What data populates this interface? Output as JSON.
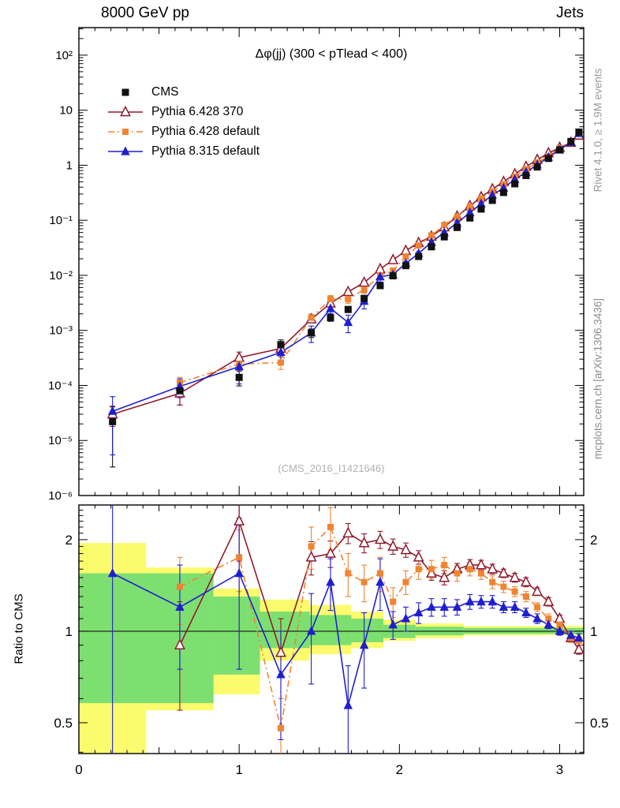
{
  "header": {
    "left": "8000 GeV pp",
    "right": "Jets"
  },
  "captions": {
    "rivet": "Rivet 4.1.0, ≥ 1.9M events",
    "mcplots": "mcplots.cern.ch [arXiv:1306.3436]",
    "watermark": "(CMS_2016_I1421646)",
    "ratio_ylabel": "Ratio to CMS"
  },
  "chart_data": {
    "type": "line",
    "title": "Δφ(jj) (300 < pTlead <  400)",
    "xlabel": "",
    "ylabel": "",
    "xlim": [
      0,
      3.15
    ],
    "x_ticks": [
      0,
      1,
      2,
      3
    ],
    "main_ylim_log": [
      -6,
      2.5
    ],
    "main_y_tick_exp": [
      2,
      1,
      0,
      -1,
      -2,
      -3,
      -4,
      -5,
      -6
    ],
    "main_y_tick_labels": [
      "10²",
      "10",
      "1",
      "10⁻¹",
      "10⁻²",
      "10⁻³",
      "10⁻⁴",
      "10⁻⁵",
      "10⁻⁶"
    ],
    "ratio_ylim": [
      0.396,
      2.6
    ],
    "ratio_ticks": [
      0.5,
      1,
      2
    ],
    "ratio_tick_labels": [
      "0.5",
      "1",
      "2"
    ],
    "ratio_minor_ticks": [
      0.4,
      0.6,
      0.7,
      0.8,
      0.9,
      1.1,
      1.2,
      1.3,
      1.4,
      1.5,
      1.6,
      1.7,
      1.8,
      1.9,
      2.1,
      2.2,
      2.3,
      2.4,
      2.5
    ],
    "x": [
      0.21,
      0.63,
      1.0,
      1.26,
      1.45,
      1.57,
      1.68,
      1.78,
      1.88,
      1.96,
      2.04,
      2.12,
      2.2,
      2.28,
      2.36,
      2.44,
      2.51,
      2.58,
      2.65,
      2.72,
      2.79,
      2.86,
      2.93,
      3.0,
      3.07,
      3.12
    ],
    "series": [
      {
        "name": "CMS",
        "color": "#111111",
        "marker": "square-filled",
        "msize": 9,
        "line": "none",
        "y": [
          2.2e-05,
          8e-05,
          0.00014,
          0.00055,
          0.0009,
          0.0017,
          0.0024,
          0.0038,
          0.0065,
          0.0098,
          0.015,
          0.022,
          0.033,
          0.05,
          0.074,
          0.11,
          0.16,
          0.23,
          0.32,
          0.46,
          0.65,
          0.93,
          1.33,
          1.9,
          2.7,
          4.0
        ],
        "rel_err": [
          0.85,
          0.45,
          0.3,
          0.22,
          0.18,
          0.14,
          0.12,
          0.11,
          0.1,
          0.08,
          0.07,
          0.06,
          0.06,
          0.05,
          0.05,
          0.04,
          0.04,
          0.04,
          0.03,
          0.03,
          0.03,
          0.03,
          0.02,
          0.02,
          0.02,
          0.02
        ]
      },
      {
        "name": "Pythia 6.428 370",
        "color": "#8f1b2e",
        "marker": "triangle-open",
        "msize": 11,
        "line": "solid",
        "y": [
          3e-05,
          7.2e-05,
          0.00032,
          0.00047,
          0.0016,
          0.0031,
          0.005,
          0.0074,
          0.013,
          0.019,
          0.028,
          0.039,
          0.051,
          0.075,
          0.118,
          0.182,
          0.264,
          0.368,
          0.5,
          0.69,
          0.94,
          1.26,
          1.66,
          2.09,
          2.57,
          3.48
        ],
        "ratio": [
          null,
          0.9,
          2.3,
          0.85,
          1.75,
          1.8,
          2.1,
          1.95,
          2.0,
          1.9,
          1.85,
          1.75,
          1.55,
          1.5,
          1.6,
          1.65,
          1.65,
          1.6,
          1.55,
          1.5,
          1.45,
          1.35,
          1.25,
          1.1,
          0.95,
          0.87
        ],
        "ratio_err": [
          null,
          0.35,
          0.6,
          0.25,
          0.22,
          0.18,
          0.16,
          0.14,
          0.13,
          0.11,
          0.1,
          0.09,
          0.08,
          0.08,
          0.07,
          0.07,
          0.06,
          0.06,
          0.05,
          0.05,
          0.05,
          0.04,
          0.04,
          0.03,
          0.03,
          0.03
        ]
      },
      {
        "name": "Pythia 6.428 default",
        "color": "#ef8433",
        "marker": "square-filled",
        "msize": 8,
        "line": "dashdot",
        "y": [
          null,
          0.000112,
          0.000245,
          0.00026,
          0.0017,
          0.0037,
          0.0037,
          0.0055,
          0.01,
          0.0122,
          0.022,
          0.035,
          0.053,
          0.082,
          0.115,
          0.176,
          0.248,
          0.334,
          0.448,
          0.621,
          0.845,
          1.12,
          1.46,
          2.0,
          2.57,
          3.72
        ],
        "ratio": [
          null,
          1.4,
          1.75,
          0.48,
          1.9,
          2.2,
          1.55,
          1.45,
          1.55,
          1.25,
          1.45,
          1.6,
          1.6,
          1.65,
          1.55,
          1.6,
          1.55,
          1.45,
          1.4,
          1.35,
          1.3,
          1.2,
          1.1,
          1.05,
          0.95,
          0.93
        ],
        "ratio_err": [
          null,
          0.35,
          0.4,
          0.12,
          0.3,
          0.35,
          0.25,
          0.2,
          0.2,
          0.14,
          0.13,
          0.12,
          0.11,
          0.1,
          0.09,
          0.08,
          0.07,
          0.07,
          0.06,
          0.05,
          0.05,
          0.04,
          0.04,
          0.03,
          0.03,
          0.03
        ]
      },
      {
        "name": "Pythia 8.315 default",
        "color": "#1f1fd0",
        "marker": "triangle-filled",
        "msize": 11,
        "line": "solid",
        "y": [
          3.4e-05,
          9.6e-05,
          0.00022,
          0.0004,
          0.0009,
          0.0025,
          0.0014,
          0.0034,
          0.0094,
          0.0103,
          0.0165,
          0.025,
          0.04,
          0.06,
          0.089,
          0.138,
          0.2,
          0.288,
          0.384,
          0.552,
          0.748,
          1.02,
          1.4,
          1.9,
          2.62,
          3.8
        ],
        "ratio": [
          1.55,
          1.2,
          1.55,
          0.72,
          1.0,
          1.45,
          0.57,
          0.9,
          1.45,
          1.05,
          1.1,
          1.15,
          1.2,
          1.2,
          1.2,
          1.25,
          1.25,
          1.25,
          1.2,
          1.2,
          1.15,
          1.1,
          1.05,
          1.0,
          0.97,
          0.95
        ],
        "ratio_err": [
          1.3,
          0.45,
          0.8,
          0.28,
          0.33,
          0.28,
          0.2,
          0.25,
          0.28,
          0.11,
          0.1,
          0.09,
          0.08,
          0.08,
          0.07,
          0.07,
          0.06,
          0.06,
          0.05,
          0.05,
          0.04,
          0.04,
          0.03,
          0.03,
          0.03,
          0.03
        ]
      }
    ],
    "bands": {
      "yellow": {
        "color": "#fbfb6d",
        "regions": [
          [
            0.0,
            0.42,
            0.38,
            1.95
          ],
          [
            0.42,
            0.84,
            0.55,
            1.62
          ],
          [
            0.84,
            1.13,
            0.62,
            1.38
          ],
          [
            1.13,
            1.44,
            0.8,
            1.27
          ],
          [
            1.44,
            1.7,
            0.84,
            1.22
          ],
          [
            1.7,
            1.9,
            0.88,
            1.16
          ],
          [
            1.9,
            2.1,
            0.93,
            1.09
          ],
          [
            2.1,
            2.4,
            0.95,
            1.06
          ],
          [
            2.4,
            3.15,
            0.97,
            1.04
          ]
        ]
      },
      "green": {
        "color": "#7ddf70",
        "regions": [
          [
            0.0,
            0.84,
            0.58,
            1.55
          ],
          [
            0.84,
            1.13,
            0.72,
            1.3
          ],
          [
            1.13,
            1.44,
            0.88,
            1.16
          ],
          [
            1.44,
            1.7,
            0.9,
            1.13
          ],
          [
            1.7,
            1.9,
            0.92,
            1.1
          ],
          [
            1.9,
            2.1,
            0.95,
            1.05
          ],
          [
            2.1,
            2.4,
            0.97,
            1.035
          ],
          [
            2.4,
            3.15,
            0.98,
            1.025
          ]
        ]
      }
    }
  }
}
